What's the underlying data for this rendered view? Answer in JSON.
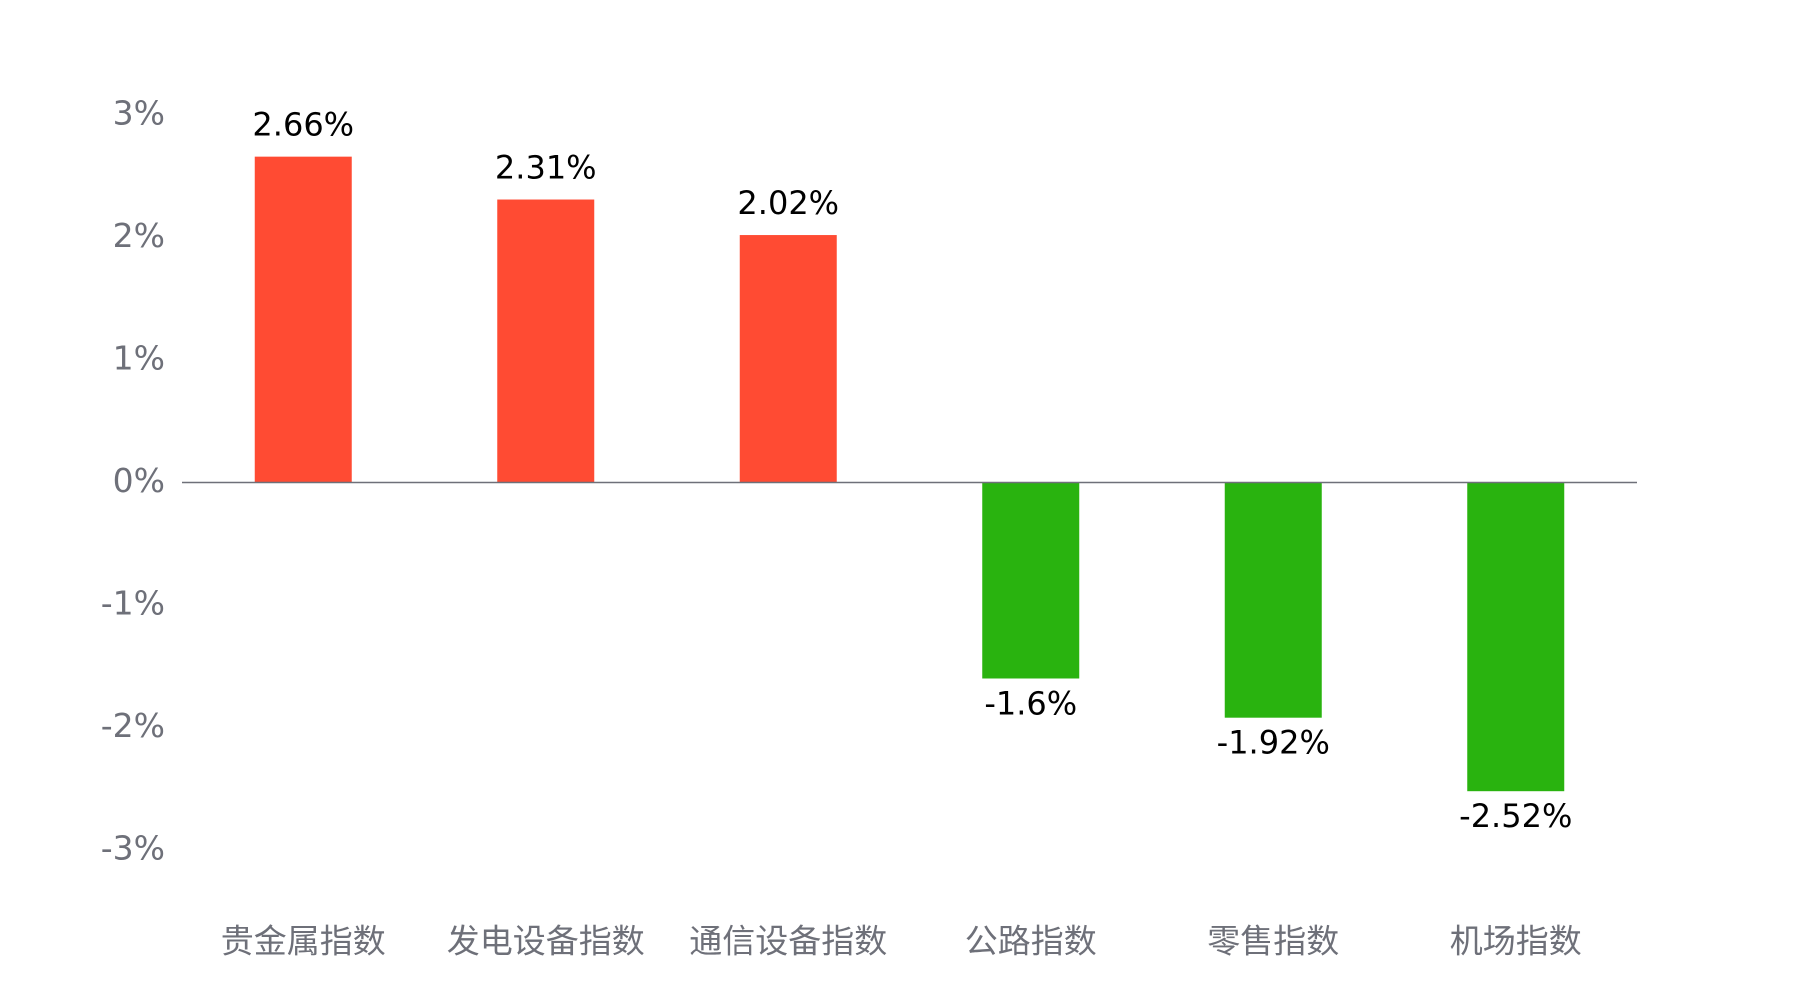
{
  "chart_data": {
    "type": "bar",
    "categories": [
      "贵金属指数",
      "发电设备指数",
      "通信设备指数",
      "公路指数",
      "零售指数",
      "机场指数"
    ],
    "values": [
      2.66,
      2.31,
      2.02,
      -1.6,
      -1.92,
      -2.52
    ],
    "value_labels": [
      "2.66%",
      "2.31%",
      "2.02%",
      "-1.6%",
      "-1.92%",
      "-2.52%"
    ],
    "positive_color": "#ff4b33",
    "negative_color": "#29b30f",
    "ylim": [
      -3,
      3
    ],
    "yticks": [
      {
        "value": 3,
        "label": "3%"
      },
      {
        "value": 2,
        "label": "2%"
      },
      {
        "value": 1,
        "label": "1%"
      },
      {
        "value": 0,
        "label": "0%"
      },
      {
        "value": -1,
        "label": "-1%"
      },
      {
        "value": -2,
        "label": "-2%"
      },
      {
        "value": -3,
        "label": "-3%"
      }
    ],
    "grid": false
  }
}
